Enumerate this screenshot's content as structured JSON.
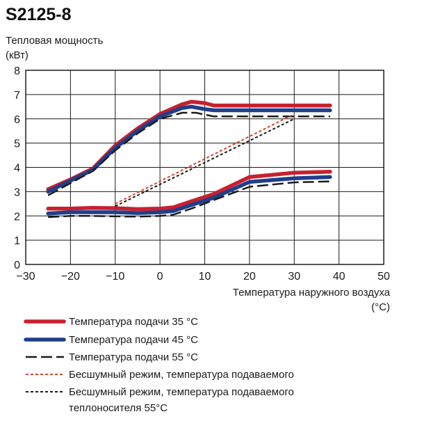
{
  "chart_data": {
    "type": "line",
    "title": "S2125-8",
    "ylabel_line1": "Тепловая мощность",
    "ylabel_line2": "(кВт)",
    "xlabel_line1": "Температура наружного воздуха",
    "xlabel_line2": "(°C)",
    "xlim": [
      -30,
      50
    ],
    "ylim": [
      0,
      8
    ],
    "xticks": [
      "−30",
      "−20",
      "−10",
      "0",
      "10",
      "20",
      "30",
      "40",
      "50"
    ],
    "xtick_values": [
      -30,
      -20,
      -10,
      0,
      10,
      20,
      30,
      40,
      50
    ],
    "yticks": [
      "0",
      "1",
      "2",
      "3",
      "4",
      "5",
      "6",
      "7",
      "8"
    ],
    "ytick_values": [
      0,
      1,
      2,
      3,
      4,
      5,
      6,
      7,
      8
    ],
    "grid": true,
    "legend_position": "bottom",
    "series": [
      {
        "name": "Температура подачи 35 °C",
        "color": "#c8202f",
        "style": "thick-solid",
        "segments": [
          [
            [
              -25,
              3.1
            ],
            [
              -20,
              3.5
            ],
            [
              -15,
              3.95
            ],
            [
              -10,
              4.9
            ],
            [
              -5,
              5.6
            ],
            [
              0,
              6.2
            ],
            [
              5,
              6.6
            ],
            [
              7,
              6.7
            ],
            [
              10,
              6.65
            ],
            [
              12,
              6.55
            ],
            [
              20,
              6.55
            ],
            [
              30,
              6.55
            ],
            [
              38,
              6.55
            ]
          ],
          [
            [
              -25,
              2.3
            ],
            [
              -20,
              2.3
            ],
            [
              -15,
              2.33
            ],
            [
              -10,
              2.32
            ],
            [
              -5,
              2.28
            ],
            [
              0,
              2.3
            ],
            [
              3,
              2.35
            ],
            [
              7,
              2.6
            ],
            [
              12,
              2.9
            ],
            [
              20,
              3.6
            ],
            [
              30,
              3.78
            ],
            [
              38,
              3.82
            ]
          ]
        ]
      },
      {
        "name": "Температура подачи 45 °C",
        "color": "#1f3f8a",
        "style": "thick-solid",
        "segments": [
          [
            [
              -25,
              3.0
            ],
            [
              -20,
              3.45
            ],
            [
              -15,
              3.9
            ],
            [
              -10,
              4.8
            ],
            [
              -5,
              5.5
            ],
            [
              0,
              6.1
            ],
            [
              5,
              6.45
            ],
            [
              7,
              6.5
            ],
            [
              10,
              6.4
            ],
            [
              12,
              6.35
            ],
            [
              20,
              6.35
            ],
            [
              30,
              6.35
            ],
            [
              38,
              6.35
            ]
          ],
          [
            [
              -25,
              2.1
            ],
            [
              -20,
              2.15
            ],
            [
              -15,
              2.15
            ],
            [
              -10,
              2.15
            ],
            [
              -5,
              2.12
            ],
            [
              0,
              2.15
            ],
            [
              3,
              2.2
            ],
            [
              7,
              2.45
            ],
            [
              12,
              2.75
            ],
            [
              20,
              3.4
            ],
            [
              30,
              3.55
            ],
            [
              38,
              3.6
            ]
          ]
        ]
      },
      {
        "name": "Температура подачи 55 °C",
        "color": "#1a1a1a",
        "style": "long-dash",
        "segments": [
          [
            [
              -25,
              2.85
            ],
            [
              -20,
              3.35
            ],
            [
              -15,
              3.85
            ],
            [
              -10,
              4.7
            ],
            [
              -5,
              5.4
            ],
            [
              0,
              6.0
            ],
            [
              5,
              6.25
            ],
            [
              8,
              6.25
            ],
            [
              12,
              6.1
            ],
            [
              20,
              6.1
            ],
            [
              30,
              6.1
            ],
            [
              38,
              6.1
            ]
          ],
          [
            [
              -25,
              1.95
            ],
            [
              -20,
              2.0
            ],
            [
              -15,
              2.0
            ],
            [
              -10,
              1.98
            ],
            [
              -5,
              1.97
            ],
            [
              0,
              2.0
            ],
            [
              3,
              2.05
            ],
            [
              7,
              2.3
            ],
            [
              12,
              2.65
            ],
            [
              20,
              3.2
            ],
            [
              30,
              3.38
            ],
            [
              38,
              3.42
            ]
          ]
        ]
      },
      {
        "name": "Бесшумный режим, температура подаваемого",
        "color": "#d9452b",
        "style": "short-dash",
        "segments": [
          [
            [
              -10,
              2.5
            ],
            [
              30,
              6.2
            ]
          ]
        ]
      },
      {
        "name": "Бесшумный режим, температура подаваемого теплоносителя 55°C",
        "color": "#1a1a1a",
        "style": "short-dash",
        "segments": [
          [
            [
              -10,
              2.4
            ],
            [
              30,
              6.0
            ]
          ]
        ]
      }
    ]
  },
  "legend": {
    "items": [
      {
        "line1": "Температура подачи 35 °C",
        "line2": ""
      },
      {
        "line1": "Температура подачи 45 °C",
        "line2": ""
      },
      {
        "line1": "Температура подачи 55 °C",
        "line2": ""
      },
      {
        "line1": "Бесшумный режим, температура подаваемого",
        "line2": ""
      },
      {
        "line1": "Бесшумный режим, температура подаваемого",
        "line2": "теплоносителя 55°C"
      }
    ]
  }
}
